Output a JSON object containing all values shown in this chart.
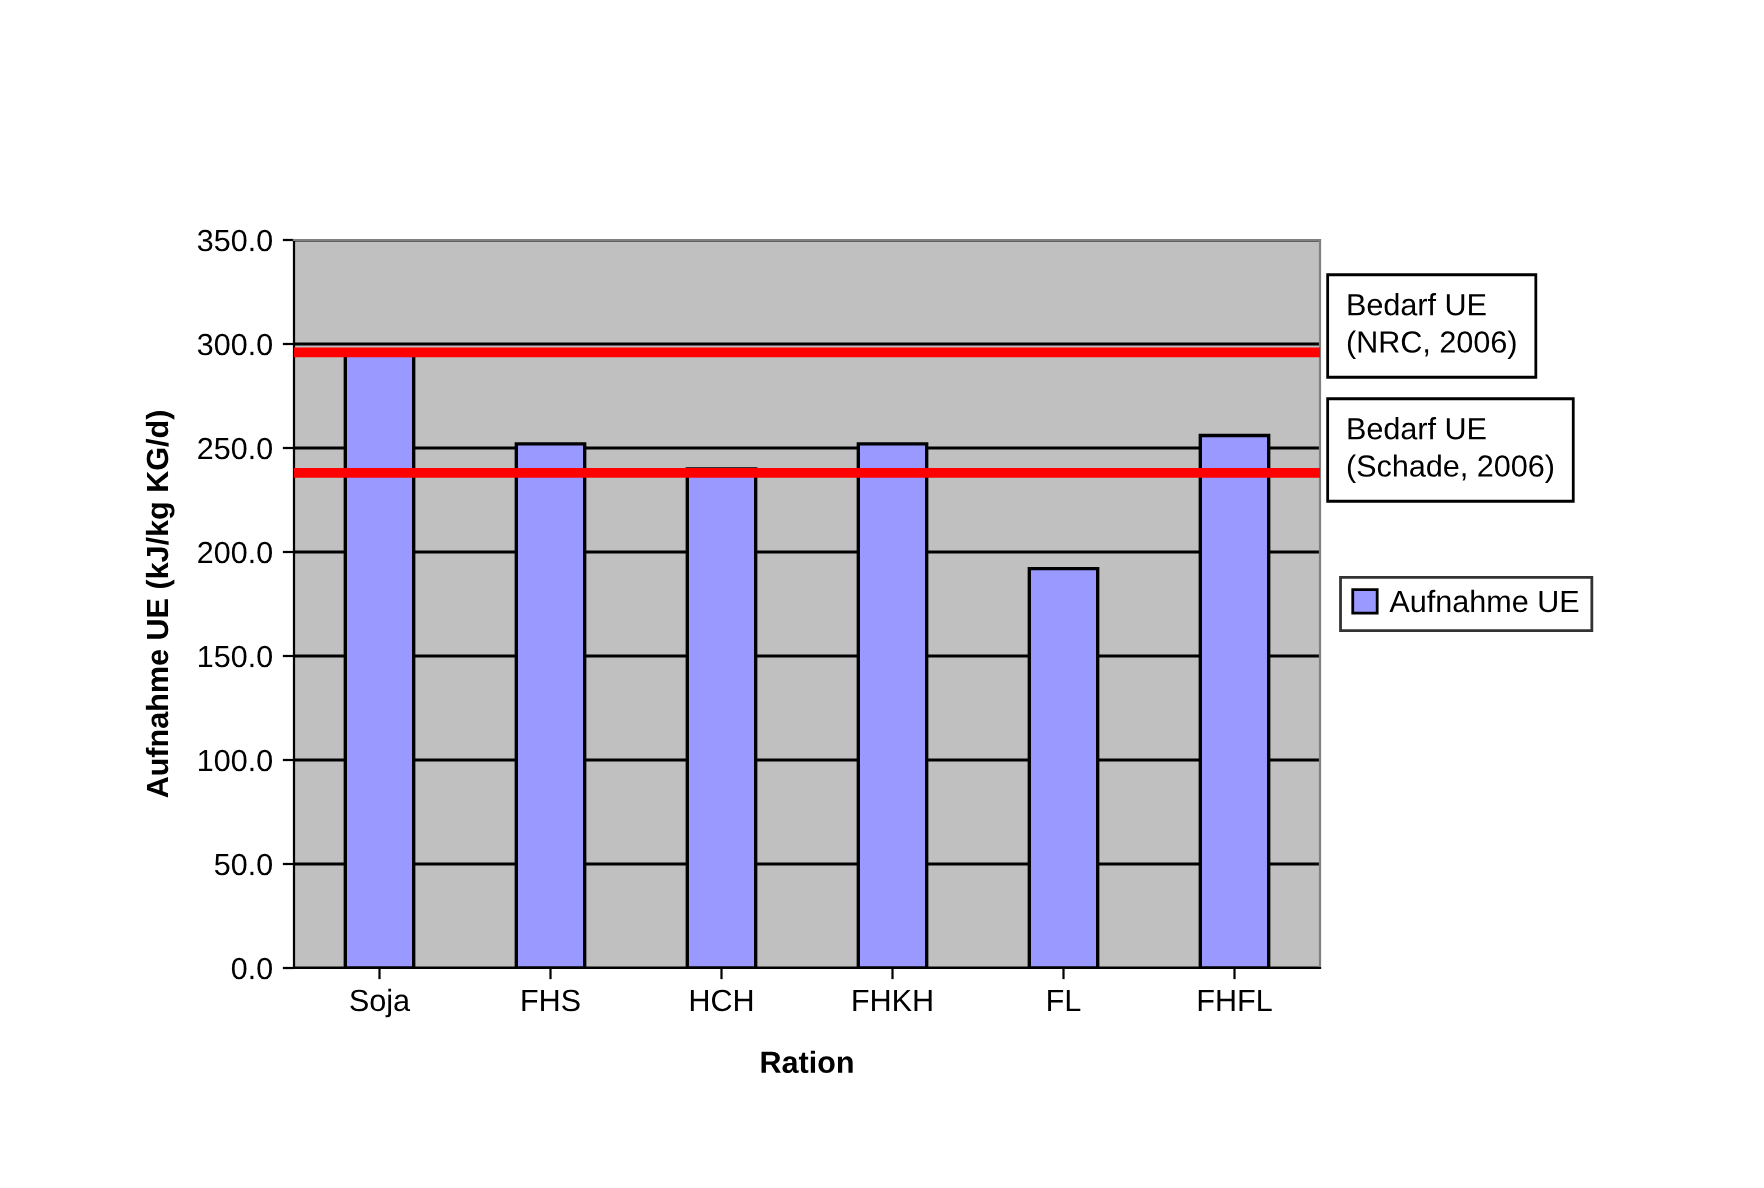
{
  "chart_data": {
    "type": "bar",
    "xlabel": "Ration",
    "ylabel": "Aufnahme UE (kJ/kg KG/d)",
    "categories": [
      "Soja",
      "FHS",
      "HCH",
      "FHKH",
      "FL",
      "FHFL"
    ],
    "series": [
      {
        "name": "Aufnahme UE",
        "color": "#9999ff",
        "values": [
          295,
          252,
          240,
          252,
          192,
          256
        ]
      }
    ],
    "ylim": [
      0,
      350
    ],
    "yticks": [
      {
        "value": 0,
        "label": "0.0"
      },
      {
        "value": 50,
        "label": "50.0"
      },
      {
        "value": 100,
        "label": "100.0"
      },
      {
        "value": 150,
        "label": "150.0"
      },
      {
        "value": 200,
        "label": "200.0"
      },
      {
        "value": 250,
        "label": "250.0"
      },
      {
        "value": 300,
        "label": "300.0"
      },
      {
        "value": 350,
        "label": "350.0"
      }
    ],
    "ref_lines": [
      {
        "axis": "y",
        "value": 296,
        "label": "Bedarf UE\n(NRC, 2006)",
        "color": "#ff0000"
      },
      {
        "axis": "y",
        "value": 238,
        "label": "Bedarf UE\n(Schade, 2006)",
        "color": "#ff0000"
      }
    ],
    "grid": "y",
    "legend": "right"
  }
}
